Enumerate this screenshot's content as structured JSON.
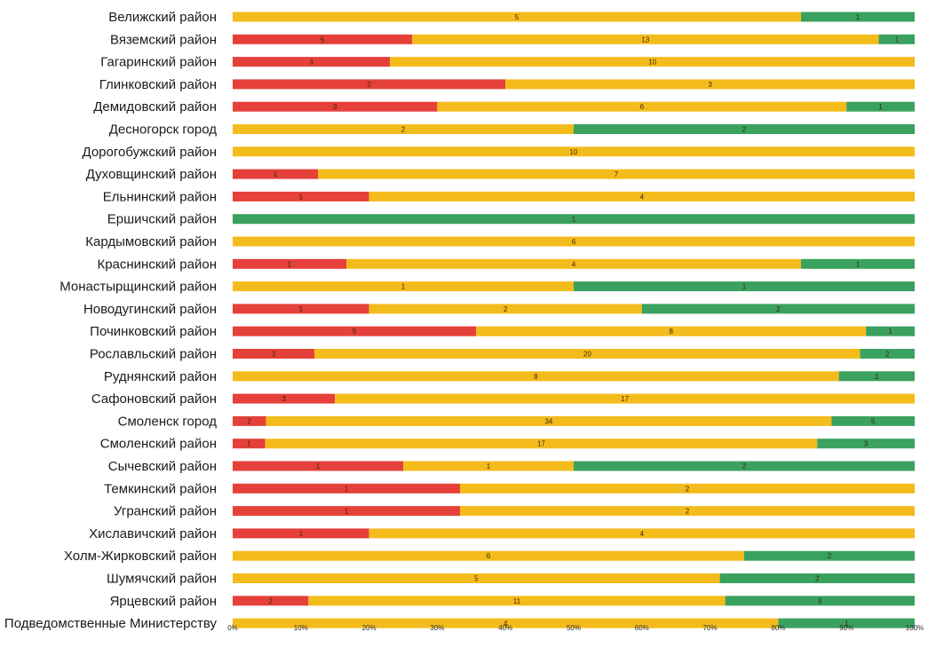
{
  "chart_data": {
    "type": "bar",
    "orientation": "horizontal",
    "stacked": true,
    "normalized": true,
    "xlim": [
      0,
      100
    ],
    "x_ticks": [
      "0%",
      "10%",
      "20%",
      "30%",
      "40%",
      "50%",
      "60%",
      "70%",
      "80%",
      "90%",
      "100%"
    ],
    "grid": false,
    "legend": "none",
    "categories": [
      "Велижский район",
      "Вяземский район",
      "Гагаринский район",
      "Глинковский район",
      "Демидовский район",
      "Десногорск город",
      "Дорогобужский район",
      "Духовщинский район",
      "Ельнинский район",
      "Ершичский район",
      "Кардымовский район",
      "Краснинский район",
      "Монастырщинский район",
      "Новодугинский район",
      "Починковский район",
      "Рославльский район",
      "Руднянский район",
      "Сафоновский район",
      "Смоленск город",
      "Смоленский район",
      "Сычевский район",
      "Темкинский район",
      "Угранский район",
      "Хиславичский район",
      "Холм-Жирковский район",
      "Шумячский район",
      "Ярцевский район",
      "Подведомственные Министерству"
    ],
    "series": [
      {
        "name": "",
        "color": "#e5403a",
        "values": [
          0,
          5,
          3,
          2,
          3,
          0,
          0,
          1,
          1,
          0,
          0,
          1,
          0,
          1,
          5,
          3,
          0,
          3,
          2,
          1,
          1,
          1,
          1,
          1,
          0,
          0,
          2,
          0
        ]
      },
      {
        "name": "",
        "color": "#f4bb1c",
        "values": [
          5,
          13,
          10,
          3,
          6,
          2,
          10,
          7,
          4,
          0,
          6,
          4,
          1,
          2,
          8,
          20,
          8,
          17,
          34,
          17,
          1,
          2,
          2,
          4,
          6,
          5,
          11,
          4
        ]
      },
      {
        "name": "",
        "color": "#3aa15f",
        "values": [
          1,
          1,
          0,
          0,
          1,
          2,
          0,
          0,
          0,
          1,
          0,
          1,
          1,
          2,
          1,
          2,
          1,
          0,
          5,
          3,
          2,
          0,
          0,
          0,
          2,
          2,
          5,
          1
        ]
      }
    ]
  }
}
